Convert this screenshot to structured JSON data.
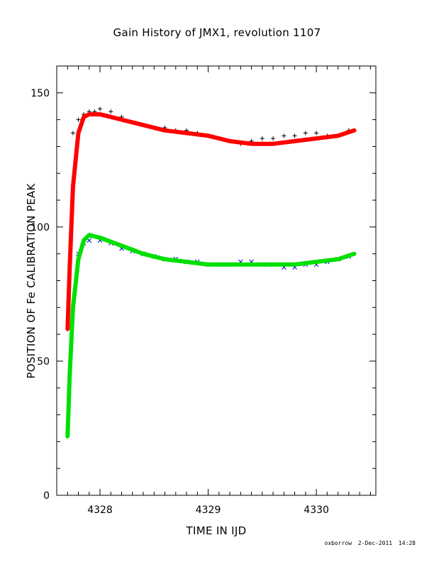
{
  "chart_data": {
    "type": "scatter",
    "title": "Gain History of JMX1, revolution 1107",
    "xlabel": "TIME IN IJD",
    "ylabel": "POSITION OF Fe CALIBRATION PEAK",
    "xlim": [
      4327.6,
      4330.55
    ],
    "ylim": [
      0,
      160
    ],
    "xticks": [
      4328,
      4329,
      4330
    ],
    "yticks": [
      0,
      50,
      100,
      150
    ],
    "grid": false,
    "legend": "none",
    "colors": {
      "upper_points": "#000000",
      "upper_fit": "#ff0000",
      "lower_points": "#0000cc",
      "lower_fit": "#00e000"
    },
    "series": [
      {
        "marker": "plus",
        "color": "#000000",
        "x": [
          4327.75,
          4327.8,
          4327.85,
          4327.9,
          4327.95,
          4328.0,
          4328.1,
          4328.2,
          4328.3,
          4328.4,
          4328.5,
          4328.6,
          4328.7,
          4328.8,
          4328.9,
          4329.0,
          4329.1,
          4329.2,
          4329.3,
          4329.4,
          4329.5,
          4329.6,
          4329.7,
          4329.8,
          4329.9,
          4330.0,
          4330.1,
          4330.2,
          4330.3
        ],
        "y": [
          135,
          140,
          142,
          143,
          143,
          144,
          143,
          141,
          139,
          138,
          137,
          137,
          136,
          136,
          135,
          134,
          133,
          132,
          131,
          132,
          133,
          133,
          134,
          134,
          135,
          135,
          134,
          134,
          136
        ]
      },
      {
        "marker": "curve",
        "color": "#ff0000",
        "x": [
          4327.7,
          4327.72,
          4327.75,
          4327.8,
          4327.85,
          4327.9,
          4328.0,
          4328.1,
          4328.2,
          4328.4,
          4328.6,
          4328.8,
          4329.0,
          4329.2,
          4329.4,
          4329.6,
          4329.8,
          4330.0,
          4330.2,
          4330.35
        ],
        "y": [
          62,
          85,
          115,
          135,
          141,
          142,
          142,
          141,
          140,
          138,
          136,
          135,
          134,
          132,
          131,
          131,
          132,
          133,
          134,
          136
        ]
      },
      {
        "marker": "cross",
        "color": "#0000cc",
        "x": [
          4327.8,
          4327.85,
          4327.9,
          4328.0,
          4328.1,
          4328.2,
          4328.3,
          4328.4,
          4328.5,
          4328.6,
          4328.7,
          4328.8,
          4328.9,
          4329.0,
          4329.1,
          4329.2,
          4329.3,
          4329.4,
          4329.5,
          4329.6,
          4329.7,
          4329.8,
          4329.9,
          4330.0,
          4330.1,
          4330.2,
          4330.3
        ],
        "y": [
          90,
          94,
          95,
          95,
          94,
          92,
          91,
          90,
          89,
          88,
          88,
          87,
          87,
          86,
          86,
          86,
          87,
          87,
          86,
          86,
          85,
          85,
          86,
          86,
          87,
          88,
          89
        ]
      },
      {
        "marker": "curve",
        "color": "#00e000",
        "x": [
          4327.7,
          4327.72,
          4327.75,
          4327.8,
          4327.85,
          4327.9,
          4328.0,
          4328.2,
          4328.4,
          4328.6,
          4328.8,
          4329.0,
          4329.2,
          4329.4,
          4329.6,
          4329.8,
          4330.0,
          4330.2,
          4330.35
        ],
        "y": [
          22,
          45,
          70,
          88,
          95,
          97,
          96,
          93,
          90,
          88,
          87,
          86,
          86,
          86,
          86,
          86,
          87,
          88,
          90
        ]
      }
    ]
  },
  "footer": {
    "user": "oxborrow",
    "date": "2-Dec-2011",
    "time": "14:28"
  }
}
